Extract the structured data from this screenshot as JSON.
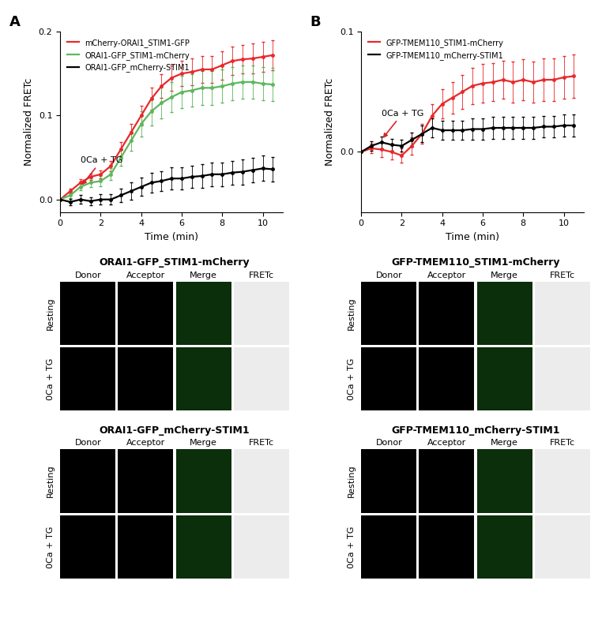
{
  "chart_data": [
    {
      "type": "line",
      "panel": "A",
      "xlabel": "Time (min)",
      "ylabel": "Normalized FRETc",
      "x": [
        0,
        0.5,
        1,
        1.5,
        2,
        2.5,
        3,
        3.5,
        4,
        4.5,
        5,
        5.5,
        6,
        6.5,
        7,
        7.5,
        8,
        8.5,
        9,
        9.5,
        10,
        10.5
      ],
      "xlim": [
        0,
        11
      ],
      "xticks": [
        0,
        2,
        4,
        6,
        8,
        10
      ],
      "ylim": [
        -0.015,
        0.2
      ],
      "yticks": [
        {
          "value": 0,
          "label": "0.0"
        },
        {
          "value": 0.1,
          "label": "0.1"
        },
        {
          "value": 0.2,
          "label": "0.2"
        }
      ],
      "legend": "upper left",
      "marker": "circle",
      "annotations": [
        {
          "text": "0Ca + TG",
          "x": 1,
          "y": 0.015,
          "color": "#d62728"
        }
      ],
      "series": [
        {
          "name": "mCherry-ORAI1_STIM1-GFP",
          "color": "#e8292b",
          "values": [
            0,
            0.01,
            0.02,
            0.027,
            0.03,
            0.04,
            0.06,
            0.08,
            0.1,
            0.12,
            0.135,
            0.145,
            0.15,
            0.152,
            0.155,
            0.155,
            0.16,
            0.165,
            0.167,
            0.168,
            0.17,
            0.172
          ],
          "errors": [
            0,
            0.003,
            0.004,
            0.004,
            0.005,
            0.006,
            0.008,
            0.01,
            0.012,
            0.013,
            0.014,
            0.015,
            0.015,
            0.016,
            0.016,
            0.016,
            0.017,
            0.017,
            0.017,
            0.018,
            0.018,
            0.018
          ]
        },
        {
          "name": "ORAI1-GFP_STIM1-mCherry",
          "color": "#5cb85c",
          "values": [
            0,
            0.005,
            0.015,
            0.02,
            0.022,
            0.03,
            0.05,
            0.07,
            0.09,
            0.105,
            0.115,
            0.122,
            0.128,
            0.13,
            0.133,
            0.133,
            0.135,
            0.138,
            0.14,
            0.14,
            0.138,
            0.137
          ],
          "errors": [
            0,
            0.003,
            0.004,
            0.005,
            0.006,
            0.007,
            0.01,
            0.012,
            0.015,
            0.017,
            0.018,
            0.018,
            0.019,
            0.019,
            0.02,
            0.02,
            0.02,
            0.02,
            0.02,
            0.02,
            0.02,
            0.02
          ]
        },
        {
          "name": "ORAI1-GFP_mCherry-STIM1",
          "color": "#000000",
          "values": [
            0,
            -0.003,
            0.0,
            -0.002,
            0.0,
            0.0,
            0.005,
            0.01,
            0.015,
            0.02,
            0.022,
            0.025,
            0.025,
            0.027,
            0.028,
            0.03,
            0.03,
            0.032,
            0.033,
            0.035,
            0.037,
            0.036
          ],
          "errors": [
            0,
            0.004,
            0.005,
            0.005,
            0.006,
            0.006,
            0.008,
            0.01,
            0.011,
            0.012,
            0.012,
            0.013,
            0.013,
            0.013,
            0.014,
            0.014,
            0.014,
            0.014,
            0.015,
            0.015,
            0.015,
            0.015
          ]
        }
      ]
    },
    {
      "type": "line",
      "panel": "B",
      "xlabel": "Time (min)",
      "ylabel": "Normalized FRETc",
      "x": [
        0,
        0.5,
        1,
        1.5,
        2,
        2.5,
        3,
        3.5,
        4,
        4.5,
        5,
        5.5,
        6,
        6.5,
        7,
        7.5,
        8,
        8.5,
        9,
        9.5,
        10,
        10.5
      ],
      "xlim": [
        0,
        11
      ],
      "xticks": [
        0,
        2,
        4,
        6,
        8,
        10
      ],
      "ylim": [
        -0.05,
        0.1
      ],
      "yticks": [
        {
          "value": 0,
          "label": "0.0"
        },
        {
          "value": 0.1,
          "label": "0.1"
        }
      ],
      "legend": "upper left",
      "marker": "circle",
      "annotations": [
        {
          "text": "0Ca + TG",
          "x": 1,
          "y": 0.01,
          "color": "#d62728"
        }
      ],
      "series": [
        {
          "name": "GFP-TMEM110_STIM1-mCherry",
          "color": "#e8292b",
          "values": [
            0,
            0.003,
            0.002,
            0.0,
            -0.003,
            0.005,
            0.015,
            0.03,
            0.04,
            0.045,
            0.05,
            0.055,
            0.057,
            0.058,
            0.06,
            0.058,
            0.06,
            0.058,
            0.06,
            0.06,
            0.062,
            0.063
          ],
          "errors": [
            0,
            0.004,
            0.006,
            0.006,
            0.006,
            0.007,
            0.008,
            0.01,
            0.012,
            0.013,
            0.014,
            0.015,
            0.016,
            0.016,
            0.016,
            0.017,
            0.017,
            0.017,
            0.018,
            0.018,
            0.018,
            0.018
          ]
        },
        {
          "name": "GFP-TMEM110_mCherry-STIM1",
          "color": "#000000",
          "values": [
            0,
            0.005,
            0.008,
            0.006,
            0.005,
            0.01,
            0.015,
            0.02,
            0.018,
            0.018,
            0.018,
            0.019,
            0.019,
            0.02,
            0.02,
            0.02,
            0.02,
            0.02,
            0.021,
            0.021,
            0.022,
            0.022
          ],
          "errors": [
            0,
            0.004,
            0.005,
            0.005,
            0.005,
            0.006,
            0.007,
            0.008,
            0.008,
            0.008,
            0.008,
            0.009,
            0.009,
            0.009,
            0.009,
            0.009,
            0.009,
            0.009,
            0.009,
            0.009,
            0.009,
            0.009
          ]
        }
      ]
    }
  ],
  "image_panels": [
    {
      "title": "ORAI1-GFP_STIM1-mCherry",
      "columns": [
        "Donor",
        "Acceptor",
        "Merge",
        "FRETc"
      ],
      "rows": [
        "Resting",
        "0Ca + TG"
      ]
    },
    {
      "title": "ORAI1-GFP_mCherry-STIM1",
      "columns": [
        "Donor",
        "Acceptor",
        "Merge",
        "FRETc"
      ],
      "rows": [
        "Resting",
        "0Ca + TG"
      ]
    },
    {
      "title": "GFP-TMEM110_STIM1-mCherry",
      "columns": [
        "Donor",
        "Acceptor",
        "Merge",
        "FRETc"
      ],
      "rows": [
        "Resting",
        "0Ca + TG"
      ]
    },
    {
      "title": "GFP-TMEM110_mCherry-STIM1",
      "columns": [
        "Donor",
        "Acceptor",
        "Merge",
        "FRETc"
      ],
      "rows": [
        "Resting",
        "0Ca + TG"
      ]
    }
  ]
}
